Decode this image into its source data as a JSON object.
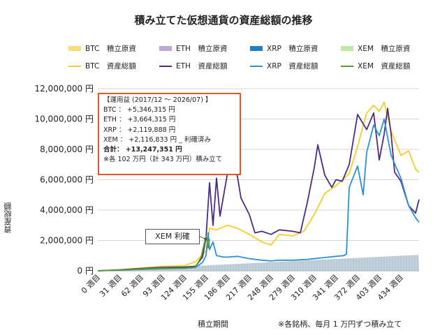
{
  "chart_data": {
    "type": "line",
    "title": "積み立てた仮想通貨の資産総額の推移",
    "xlabel": "積立期間",
    "ylabel": "資産総額",
    "x_note": "※各銘柄、毎月 1 万円ずつ積み立て",
    "ylim": [
      0,
      12000000
    ],
    "xlim": [
      0,
      460
    ],
    "y_ticks": [
      "0 円",
      "2,000,000 円",
      "4,000,000 円",
      "6,000,000 円",
      "8,000,000 円",
      "10,000,000 円",
      "12,000,000 円"
    ],
    "y_tick_values": [
      0,
      2000000,
      4000000,
      6000000,
      8000000,
      10000000,
      12000000
    ],
    "x_ticks": [
      "0 週目",
      "31 週目",
      "62 週目",
      "93 週目",
      "124 週目",
      "155 週目",
      "186 週目",
      "217 週目",
      "248 週目",
      "279 週目",
      "310 週目",
      "341 週目",
      "372 週目",
      "403 週目",
      "434 週目"
    ],
    "x_tick_values": [
      0,
      31,
      62,
      93,
      124,
      155,
      186,
      217,
      248,
      279,
      310,
      341,
      372,
      403,
      434
    ],
    "grid": true,
    "legend_position": "top",
    "legend": [
      {
        "label": "BTC　積立原資",
        "kind": "bar",
        "color": "#f7dc7a"
      },
      {
        "label": "ETH　積立原資",
        "kind": "bar",
        "color": "#b9a9d6"
      },
      {
        "label": "XRP　積立原資",
        "kind": "bar",
        "color": "#1f7fc0"
      },
      {
        "label": "XEM　積立原資",
        "kind": "bar",
        "color": "#bde8a8"
      },
      {
        "label": "BTC　資産総額",
        "kind": "line",
        "color": "#f5cd2c"
      },
      {
        "label": "ETH　資産総額",
        "kind": "line",
        "color": "#4b2c7f"
      },
      {
        "label": "XRP　資産総額",
        "kind": "line",
        "color": "#2e8fd6"
      },
      {
        "label": "XEM　資産総額",
        "kind": "line",
        "color": "#5a9a2a"
      }
    ],
    "principal": {
      "color": "#a9bfcc",
      "x": [
        0,
        460
      ],
      "y": [
        0,
        1050000
      ]
    },
    "series": [
      {
        "name": "BTC　資産総額",
        "color": "#f5cd2c",
        "x": [
          0,
          31,
          62,
          93,
          124,
          140,
          155,
          160,
          170,
          186,
          200,
          217,
          235,
          248,
          260,
          279,
          295,
          310,
          325,
          341,
          360,
          372,
          385,
          395,
          403,
          410,
          420,
          434,
          445,
          455,
          460
        ],
        "y": [
          0,
          70000,
          180000,
          300000,
          330000,
          600000,
          1300000,
          2800000,
          2700000,
          3000000,
          2800000,
          2400000,
          1900000,
          1700000,
          2400000,
          2300000,
          2600000,
          3700000,
          5100000,
          5600000,
          6400000,
          8200000,
          10400000,
          10900000,
          10500000,
          11100000,
          9200000,
          7600000,
          7900000,
          6700000,
          6500000
        ]
      },
      {
        "name": "ETH　資産総額",
        "color": "#4b2c7f",
        "x": [
          0,
          31,
          62,
          93,
          124,
          140,
          150,
          155,
          160,
          165,
          170,
          175,
          186,
          195,
          200,
          205,
          217,
          225,
          235,
          248,
          260,
          279,
          290,
          300,
          310,
          315,
          325,
          335,
          341,
          350,
          360,
          372,
          385,
          395,
          403,
          410,
          415,
          420,
          425,
          434,
          445,
          455,
          460
        ],
        "y": [
          0,
          60000,
          150000,
          220000,
          250000,
          300000,
          900000,
          2200000,
          5800000,
          3000000,
          6100000,
          3600000,
          6500000,
          7000000,
          6200000,
          4800000,
          3700000,
          2500000,
          2600000,
          2400000,
          2700000,
          2600000,
          2500000,
          4500000,
          6800000,
          8300000,
          6300000,
          5500000,
          6000000,
          5900000,
          7000000,
          10300000,
          9300000,
          10400000,
          7300000,
          9000000,
          10700000,
          9000000,
          6500000,
          5900000,
          4300000,
          3800000,
          4700000
        ]
      },
      {
        "name": "XRP　資産総額",
        "color": "#2e8fd6",
        "x": [
          0,
          31,
          62,
          93,
          124,
          140,
          150,
          155,
          158,
          160,
          165,
          170,
          180,
          186,
          200,
          217,
          235,
          248,
          260,
          279,
          300,
          320,
          341,
          352,
          356,
          360,
          372,
          380,
          385,
          395,
          403,
          410,
          420,
          434,
          445,
          455,
          460
        ],
        "y": [
          0,
          40000,
          90000,
          140000,
          160000,
          220000,
          550000,
          1000000,
          2500000,
          1400000,
          1900000,
          1000000,
          900000,
          900000,
          950000,
          800000,
          700000,
          650000,
          700000,
          700000,
          750000,
          850000,
          950000,
          1000000,
          1100000,
          5500000,
          6900000,
          5000000,
          7800000,
          9600000,
          8900000,
          10000000,
          7600000,
          6100000,
          4300000,
          3500000,
          3200000
        ]
      },
      {
        "name": "XEM　資産総額",
        "color": "#5a9a2a",
        "x": [
          0,
          31,
          62,
          93,
          124,
          140,
          148,
          152,
          155,
          158,
          160
        ],
        "y": [
          0,
          50000,
          120000,
          170000,
          180000,
          250000,
          900000,
          1700000,
          2300000,
          1500000,
          2100000
        ]
      }
    ]
  },
  "infobox": {
    "header": "【運用益 (2017/12 〜 2026/07) 】",
    "lines": [
      "BTC ： +5,346,315 円",
      "ETH ： +3,664,315 円",
      "XRP ： +2,119,888 円",
      "XEM ： +2,116,833 円 _ 利確済み"
    ],
    "total": "合計： +13,247,351 円",
    "note": "※各 102 万円（計 343 万円）積み立て"
  },
  "callout": {
    "label": "XEM 利確",
    "x": 158,
    "y": 2100000
  }
}
